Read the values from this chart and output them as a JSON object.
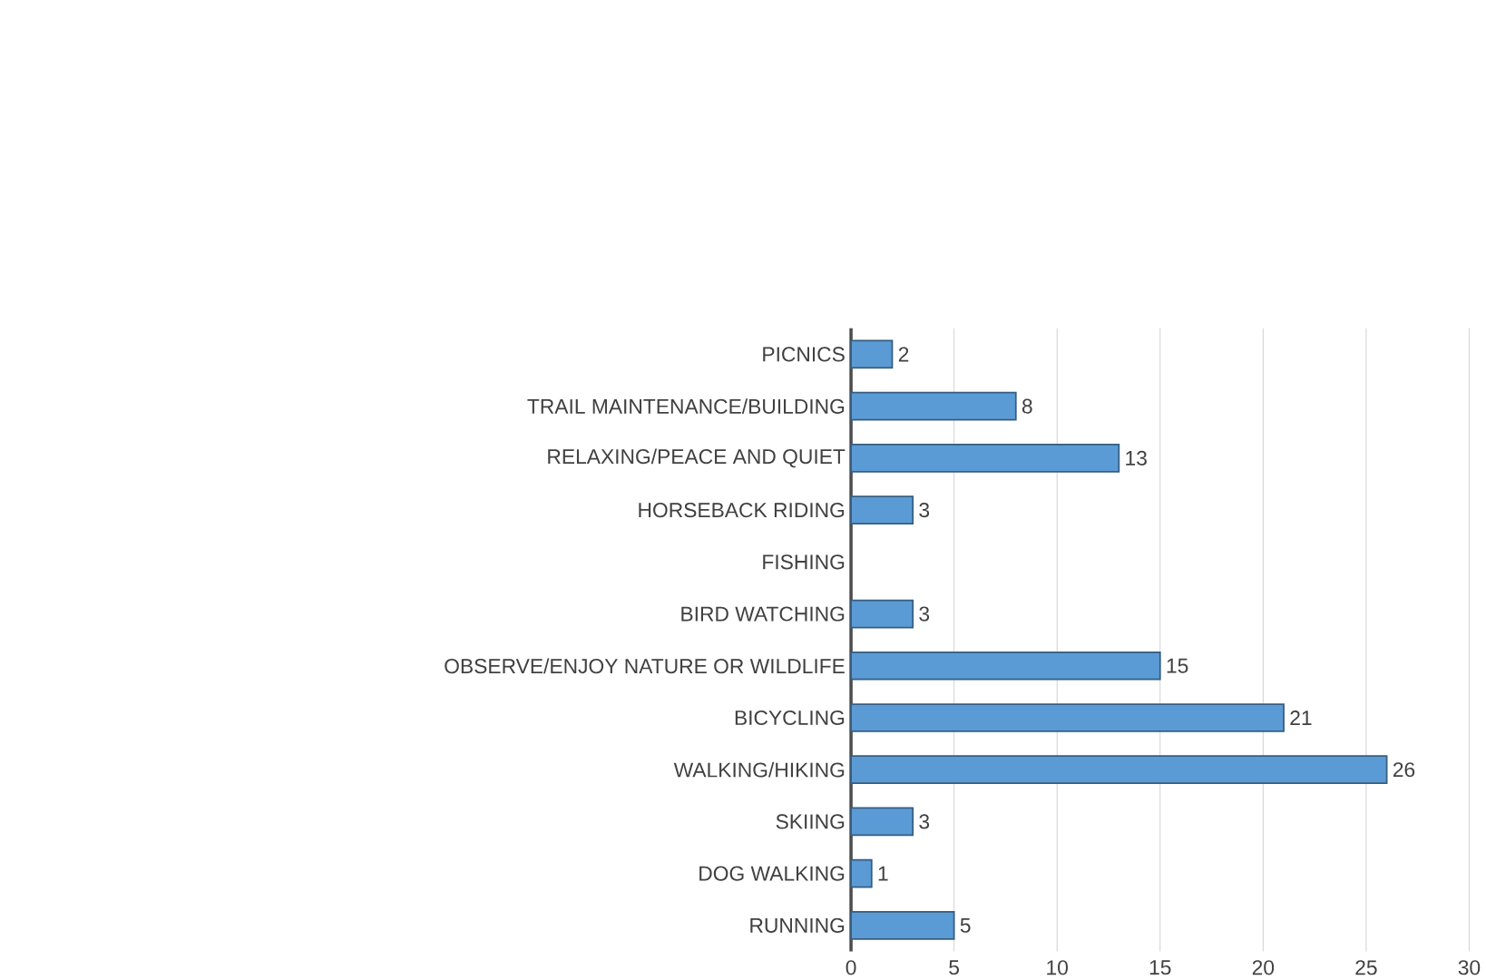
{
  "chart_data": {
    "type": "bar",
    "orientation": "horizontal",
    "categories": [
      "PICNICS",
      "TRAIL MAINTENANCE/BUILDING",
      "RELAXING/PEACE AND QUIET",
      "HORSEBACK RIDING",
      "FISHING",
      "BIRD WATCHING",
      "OBSERVE/ENJOY NATURE OR WILDLIFE",
      "BICYCLING",
      "WALKING/HIKING",
      "SKIING",
      "DOG WALKING",
      "RUNNING"
    ],
    "values": [
      2,
      8,
      13,
      3,
      null,
      3,
      15,
      21,
      26,
      3,
      1,
      5
    ],
    "color": "#5b9bd5",
    "xlim": [
      0,
      30
    ],
    "xticks": [
      0,
      5,
      10,
      15,
      20,
      25,
      30
    ],
    "grid": "x",
    "data_labels": true
  }
}
